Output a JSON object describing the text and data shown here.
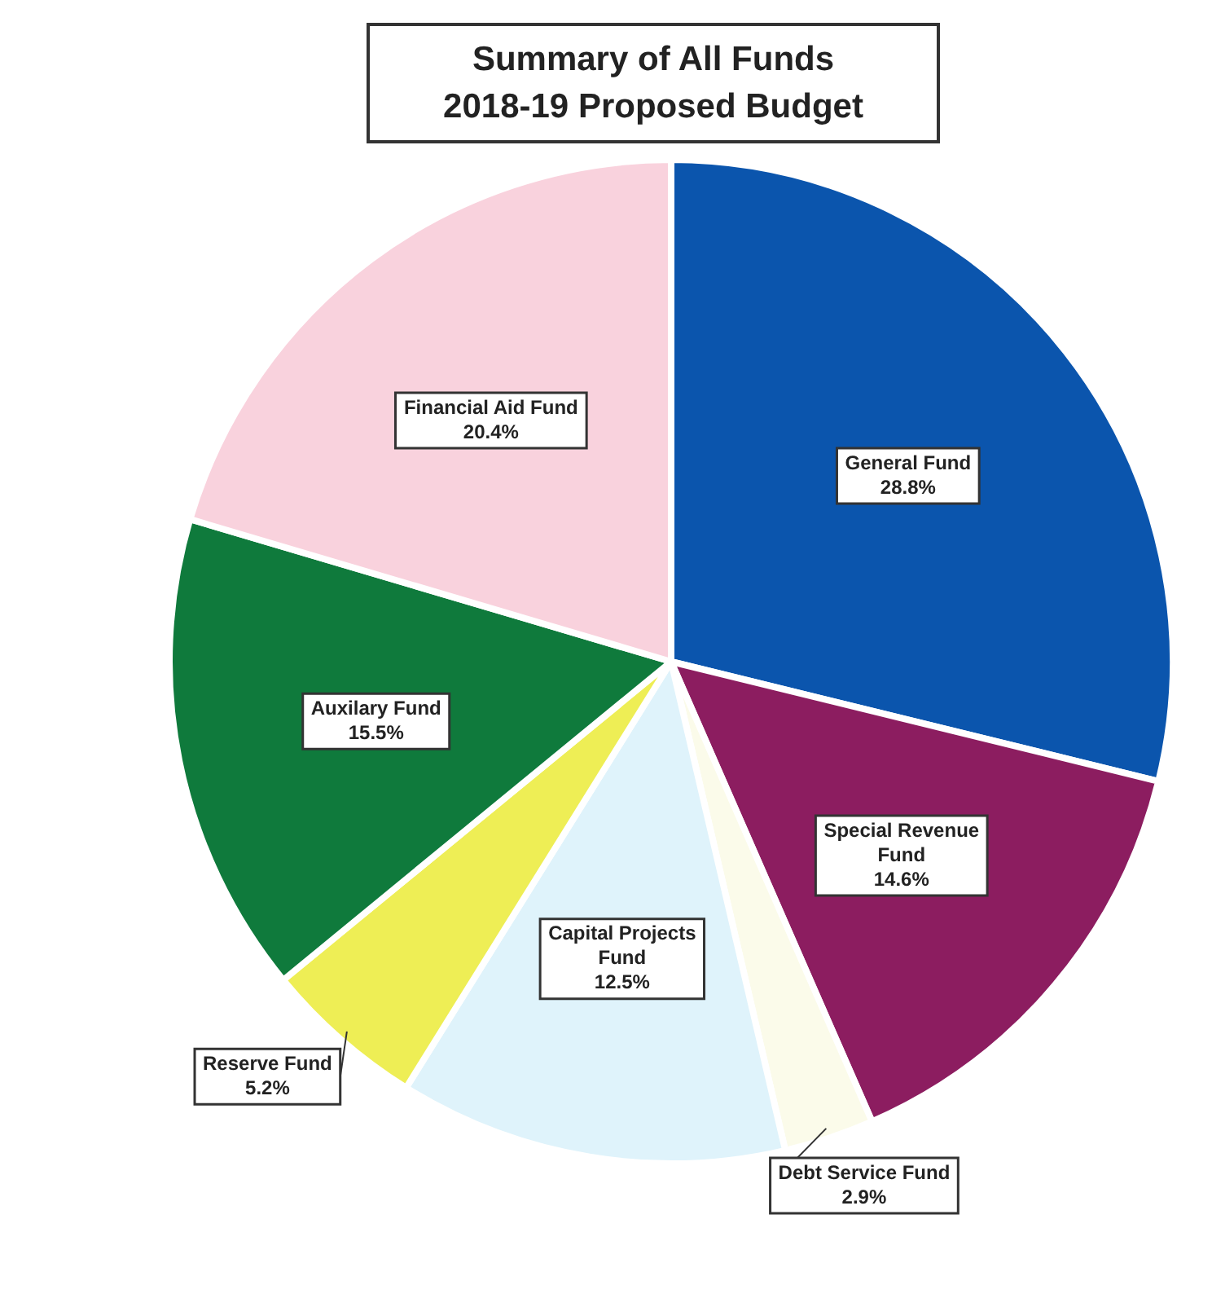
{
  "chart_data": {
    "type": "pie",
    "title": "Summary of All Funds\n2018-19 Proposed Budget",
    "categories": [
      "General Fund",
      "Special Revenue Fund",
      "Debt Service Fund",
      "Capital Projects Fund",
      "Reserve Fund",
      "Auxilary Fund",
      "Financial Aid Fund"
    ],
    "values": [
      28.8,
      14.6,
      2.9,
      12.5,
      5.2,
      15.5,
      20.4
    ],
    "value_labels": [
      "28.8%",
      "14.6%",
      "2.9%",
      "12.5%",
      "5.2%",
      "15.5%",
      "20.4%"
    ],
    "colors": [
      "#0b55ad",
      "#8c1d60",
      "#fbfbea",
      "#dff3fb",
      "#eeee55",
      "#0f7a3c",
      "#f9d2dd"
    ]
  }
}
